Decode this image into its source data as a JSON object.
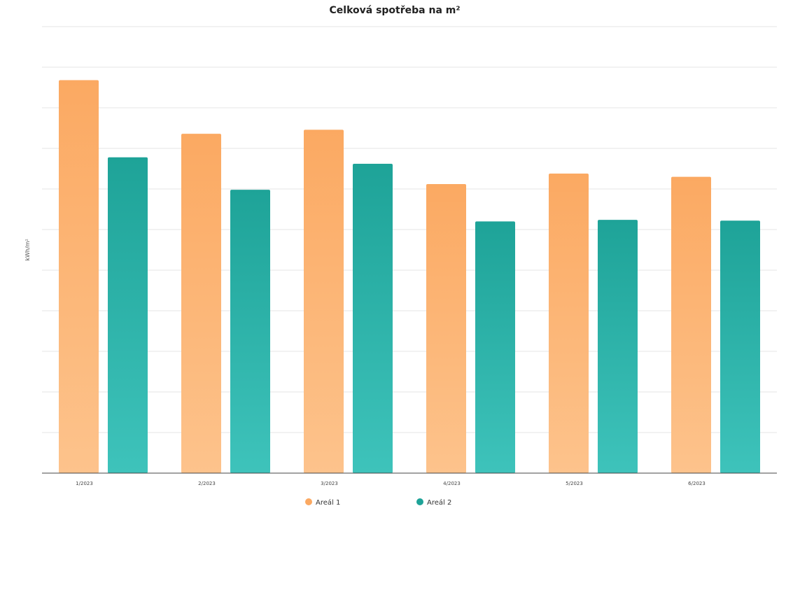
{
  "chart_data": {
    "type": "bar",
    "title": "Celková spotřeba na m²",
    "xlabel": "",
    "ylabel": "kWh/m²",
    "categories": [
      "1/2023",
      "2/2023",
      "3/2023",
      "4/2023",
      "5/2023",
      "6/2023"
    ],
    "series": [
      {
        "name": "Areál 1",
        "color": "#fba962",
        "color_light": "#fdc38c",
        "values": [
          4.84,
          4.18,
          4.23,
          3.56,
          3.69,
          3.65
        ]
      },
      {
        "name": "Areál 2",
        "color": "#1ea398",
        "color_light": "#3ec3bb",
        "values": [
          3.89,
          3.49,
          3.81,
          3.1,
          3.12,
          3.11
        ]
      }
    ],
    "ylim": [
      0,
      5.5
    ],
    "grid": true,
    "legend": "bottom-center"
  }
}
